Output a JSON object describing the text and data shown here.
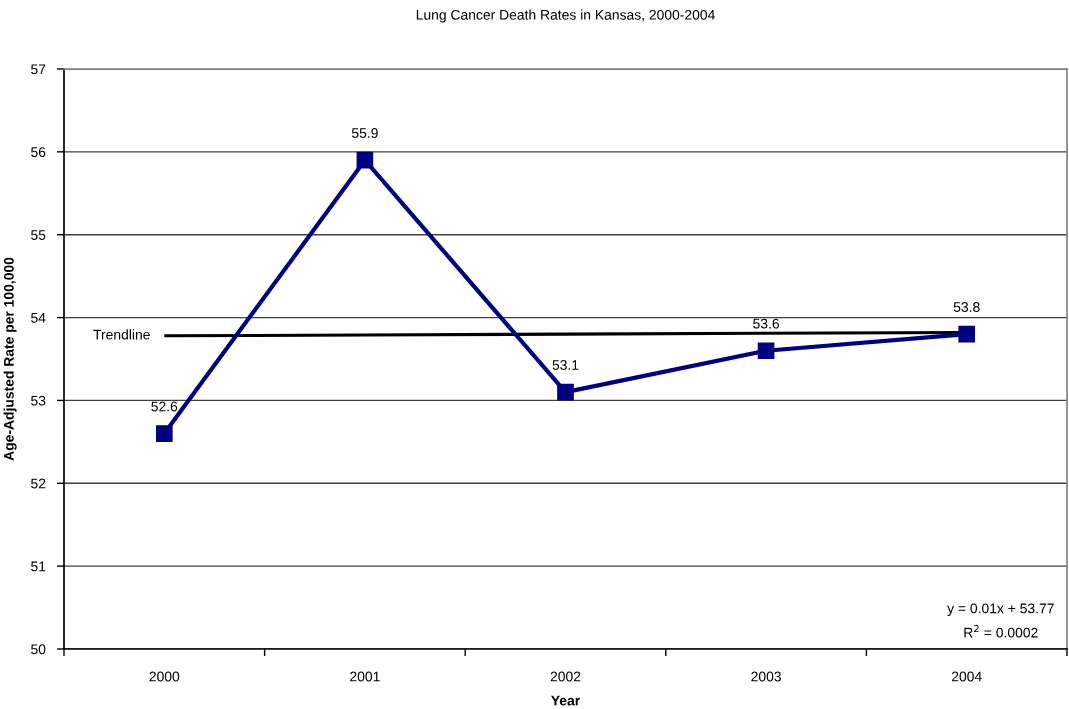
{
  "chart_data": {
    "type": "line",
    "title": "Lung Cancer Death Rates in Kansas, 2000-2004",
    "xlabel": "Year",
    "ylabel": "Age-Adjusted Rate per 100,000",
    "categories": [
      "2000",
      "2001",
      "2002",
      "2003",
      "2004"
    ],
    "series": [
      {
        "color": "#000080",
        "values": [
          52.6,
          55.9,
          53.1,
          53.6,
          53.8
        ],
        "value_labels": [
          "52.6",
          "55.9",
          "53.1",
          "53.6",
          "53.8"
        ]
      },
      {
        "name": "Trendline",
        "type": "line",
        "color": "#000000",
        "values": [
          53.78,
          53.79,
          53.8,
          53.81,
          53.82
        ],
        "marker": "none"
      }
    ],
    "ylim": [
      50,
      57
    ],
    "yticks": [
      50,
      51,
      52,
      53,
      54,
      55,
      56,
      57
    ],
    "grid": "y",
    "marker": "square",
    "line_style": "solid",
    "annotations": [
      "y = 0.01x + 53.77",
      "R$^{2}$ = 0.0002"
    ]
  }
}
